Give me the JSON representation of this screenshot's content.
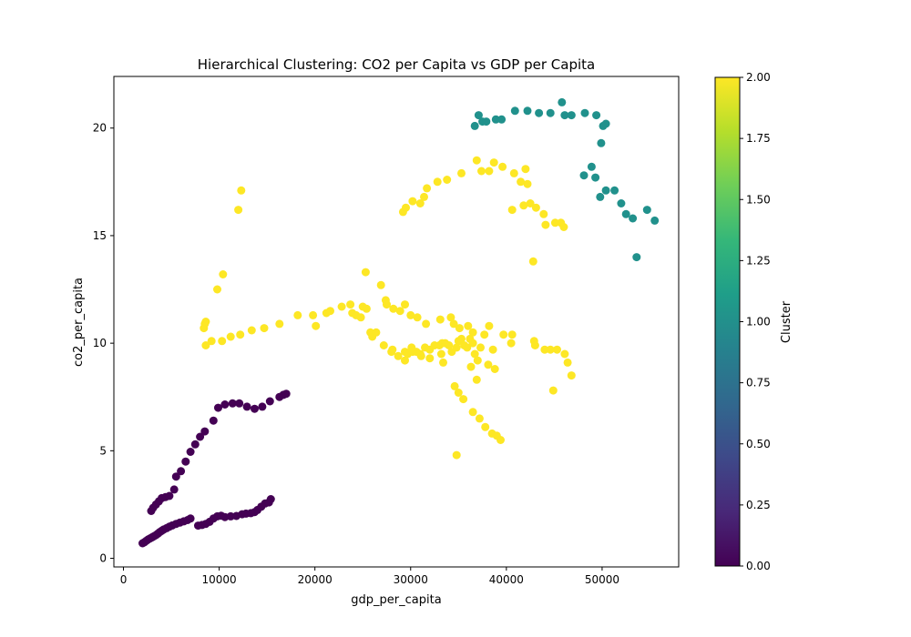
{
  "chart_data": {
    "type": "scatter",
    "title": "Hierarchical Clustering: CO2 per Capita vs GDP per Capita",
    "xlabel": "gdp_per_capita",
    "ylabel": "co2_per_capita",
    "xlim": [
      -1000,
      58000
    ],
    "ylim": [
      -0.4,
      22.4
    ],
    "xticks": [
      0,
      10000,
      20000,
      30000,
      40000,
      50000
    ],
    "yticks": [
      0,
      5,
      10,
      15,
      20
    ],
    "grid": false,
    "colorbar": {
      "label": "Cluster",
      "range": [
        0,
        2
      ],
      "ticks": [
        "0.00",
        "0.25",
        "0.50",
        "0.75",
        "1.00",
        "1.25",
        "1.50",
        "1.75",
        "2.00"
      ],
      "colormap": [
        "#440154",
        "#482878",
        "#3e4989",
        "#31688e",
        "#26828e",
        "#1f9e89",
        "#35b779",
        "#6ece58",
        "#b5de2b",
        "#fde725"
      ]
    },
    "cluster_colors": {
      "0": "#440154",
      "1": "#21918c",
      "2": "#fde725"
    },
    "series": [
      {
        "cluster": 0,
        "points": [
          [
            2000,
            0.7
          ],
          [
            2200,
            0.75
          ],
          [
            2400,
            0.82
          ],
          [
            2600,
            0.88
          ],
          [
            2800,
            0.93
          ],
          [
            3000,
            0.98
          ],
          [
            3200,
            1.03
          ],
          [
            3400,
            1.08
          ],
          [
            3600,
            1.15
          ],
          [
            3800,
            1.22
          ],
          [
            4000,
            1.28
          ],
          [
            4200,
            1.34
          ],
          [
            4500,
            1.4
          ],
          [
            4800,
            1.47
          ],
          [
            5100,
            1.53
          ],
          [
            5500,
            1.6
          ],
          [
            5900,
            1.66
          ],
          [
            6300,
            1.72
          ],
          [
            6700,
            1.78
          ],
          [
            7000,
            1.85
          ],
          [
            7800,
            1.52
          ],
          [
            8200,
            1.55
          ],
          [
            8600,
            1.6
          ],
          [
            9000,
            1.7
          ],
          [
            9400,
            1.85
          ],
          [
            9800,
            1.95
          ],
          [
            10200,
            1.98
          ],
          [
            10600,
            1.92
          ],
          [
            11200,
            1.95
          ],
          [
            11800,
            1.97
          ],
          [
            12400,
            2.05
          ],
          [
            12800,
            2.08
          ],
          [
            13300,
            2.1
          ],
          [
            13700,
            2.15
          ],
          [
            14000,
            2.25
          ],
          [
            14400,
            2.4
          ],
          [
            14800,
            2.55
          ],
          [
            15200,
            2.6
          ],
          [
            15400,
            2.75
          ],
          [
            2900,
            2.2
          ],
          [
            3100,
            2.35
          ],
          [
            3400,
            2.5
          ],
          [
            3700,
            2.65
          ],
          [
            4000,
            2.8
          ],
          [
            4400,
            2.85
          ],
          [
            4800,
            2.9
          ],
          [
            5300,
            3.2
          ],
          [
            5500,
            3.8
          ],
          [
            6000,
            4.05
          ],
          [
            6500,
            4.5
          ],
          [
            7000,
            4.95
          ],
          [
            7500,
            5.3
          ],
          [
            8000,
            5.65
          ],
          [
            8500,
            5.9
          ],
          [
            9400,
            6.4
          ],
          [
            9900,
            7.0
          ],
          [
            10600,
            7.15
          ],
          [
            11400,
            7.2
          ],
          [
            12100,
            7.2
          ],
          [
            12900,
            7.05
          ],
          [
            13700,
            6.95
          ],
          [
            14500,
            7.05
          ],
          [
            15300,
            7.3
          ],
          [
            16300,
            7.5
          ],
          [
            16700,
            7.6
          ],
          [
            17000,
            7.65
          ]
        ]
      },
      {
        "cluster": 1,
        "points": [
          [
            36700,
            20.1
          ],
          [
            37100,
            20.6
          ],
          [
            37500,
            20.3
          ],
          [
            37900,
            20.3
          ],
          [
            38900,
            20.4
          ],
          [
            39500,
            20.4
          ],
          [
            40900,
            20.8
          ],
          [
            42200,
            20.8
          ],
          [
            43400,
            20.7
          ],
          [
            44600,
            20.7
          ],
          [
            45800,
            21.2
          ],
          [
            46100,
            20.6
          ],
          [
            46800,
            20.6
          ],
          [
            48200,
            20.7
          ],
          [
            49400,
            20.6
          ],
          [
            50100,
            20.1
          ],
          [
            50400,
            20.2
          ],
          [
            49900,
            19.3
          ],
          [
            48100,
            17.8
          ],
          [
            48900,
            18.2
          ],
          [
            49300,
            17.7
          ],
          [
            49800,
            16.8
          ],
          [
            50400,
            17.1
          ],
          [
            51300,
            17.1
          ],
          [
            52000,
            16.5
          ],
          [
            52500,
            16.0
          ],
          [
            53200,
            15.8
          ],
          [
            54700,
            16.2
          ],
          [
            55500,
            15.7
          ],
          [
            53600,
            14.0
          ]
        ]
      },
      {
        "cluster": 2,
        "points": [
          [
            12000,
            16.2
          ],
          [
            12300,
            17.1
          ],
          [
            10400,
            13.2
          ],
          [
            9800,
            12.5
          ],
          [
            8400,
            10.7
          ],
          [
            8500,
            10.9
          ],
          [
            8600,
            11.0
          ],
          [
            8600,
            9.9
          ],
          [
            9200,
            10.1
          ],
          [
            10300,
            10.1
          ],
          [
            11200,
            10.3
          ],
          [
            12200,
            10.4
          ],
          [
            13400,
            10.6
          ],
          [
            14700,
            10.7
          ],
          [
            16300,
            10.9
          ],
          [
            18200,
            11.3
          ],
          [
            19800,
            11.3
          ],
          [
            20100,
            10.8
          ],
          [
            21200,
            11.4
          ],
          [
            21600,
            11.5
          ],
          [
            22800,
            11.7
          ],
          [
            23700,
            11.8
          ],
          [
            23900,
            11.4
          ],
          [
            24300,
            11.3
          ],
          [
            24800,
            11.2
          ],
          [
            25000,
            11.7
          ],
          [
            25400,
            11.6
          ],
          [
            25300,
            13.3
          ],
          [
            26900,
            12.7
          ],
          [
            27400,
            12.0
          ],
          [
            27500,
            11.8
          ],
          [
            28200,
            11.6
          ],
          [
            28900,
            11.5
          ],
          [
            29400,
            11.8
          ],
          [
            30000,
            11.3
          ],
          [
            30700,
            11.2
          ],
          [
            31600,
            10.9
          ],
          [
            33100,
            11.1
          ],
          [
            34200,
            11.2
          ],
          [
            34500,
            10.9
          ],
          [
            35100,
            10.7
          ],
          [
            36000,
            10.8
          ],
          [
            36500,
            10.5
          ],
          [
            37700,
            10.4
          ],
          [
            38200,
            10.8
          ],
          [
            39700,
            10.4
          ],
          [
            40600,
            10.4
          ],
          [
            42900,
            10.1
          ],
          [
            43000,
            9.9
          ],
          [
            25800,
            10.5
          ],
          [
            26000,
            10.3
          ],
          [
            26400,
            10.5
          ],
          [
            27200,
            9.9
          ],
          [
            28100,
            9.7
          ],
          [
            29400,
            9.6
          ],
          [
            29700,
            9.5
          ],
          [
            30100,
            9.8
          ],
          [
            30600,
            9.6
          ],
          [
            31000,
            9.5
          ],
          [
            31500,
            9.8
          ],
          [
            32000,
            9.7
          ],
          [
            32500,
            9.9
          ],
          [
            33000,
            9.9
          ],
          [
            33300,
            10.0
          ],
          [
            33600,
            10.0
          ],
          [
            34000,
            9.9
          ],
          [
            34300,
            9.6
          ],
          [
            34800,
            9.8
          ],
          [
            35000,
            10.1
          ],
          [
            35300,
            10.2
          ],
          [
            35600,
            9.9
          ],
          [
            35900,
            9.8
          ],
          [
            36200,
            10.2
          ],
          [
            36500,
            10.0
          ],
          [
            36700,
            9.5
          ],
          [
            37000,
            9.2
          ],
          [
            37300,
            9.8
          ],
          [
            38100,
            9.0
          ],
          [
            38600,
            9.7
          ],
          [
            38800,
            8.8
          ],
          [
            40500,
            10.0
          ],
          [
            44000,
            9.7
          ],
          [
            44600,
            9.7
          ],
          [
            45300,
            9.7
          ],
          [
            46100,
            9.5
          ],
          [
            46400,
            9.1
          ],
          [
            46800,
            8.5
          ],
          [
            44900,
            7.8
          ],
          [
            28000,
            9.6
          ],
          [
            28700,
            9.4
          ],
          [
            29400,
            9.2
          ],
          [
            30200,
            9.6
          ],
          [
            31100,
            9.4
          ],
          [
            32000,
            9.3
          ],
          [
            33200,
            9.5
          ],
          [
            33400,
            9.1
          ],
          [
            34600,
            8.0
          ],
          [
            35000,
            7.7
          ],
          [
            35500,
            7.4
          ],
          [
            36300,
            8.9
          ],
          [
            36900,
            8.3
          ],
          [
            36500,
            6.8
          ],
          [
            37200,
            6.5
          ],
          [
            37800,
            6.1
          ],
          [
            38500,
            5.8
          ],
          [
            39000,
            5.7
          ],
          [
            39400,
            5.5
          ],
          [
            34800,
            4.8
          ],
          [
            29200,
            16.1
          ],
          [
            29500,
            16.3
          ],
          [
            30200,
            16.6
          ],
          [
            31000,
            16.5
          ],
          [
            31400,
            16.8
          ],
          [
            31700,
            17.2
          ],
          [
            32800,
            17.5
          ],
          [
            33800,
            17.6
          ],
          [
            35300,
            17.9
          ],
          [
            36900,
            18.5
          ],
          [
            37400,
            18.0
          ],
          [
            38200,
            18.0
          ],
          [
            38700,
            18.4
          ],
          [
            39600,
            18.2
          ],
          [
            40800,
            17.9
          ],
          [
            41500,
            17.5
          ],
          [
            42000,
            18.1
          ],
          [
            42200,
            17.4
          ],
          [
            40600,
            16.2
          ],
          [
            41800,
            16.4
          ],
          [
            42500,
            16.5
          ],
          [
            43100,
            16.3
          ],
          [
            43900,
            16.0
          ],
          [
            44100,
            15.5
          ],
          [
            45100,
            15.6
          ],
          [
            45700,
            15.6
          ],
          [
            46000,
            15.4
          ],
          [
            42800,
            13.8
          ]
        ]
      }
    ]
  }
}
